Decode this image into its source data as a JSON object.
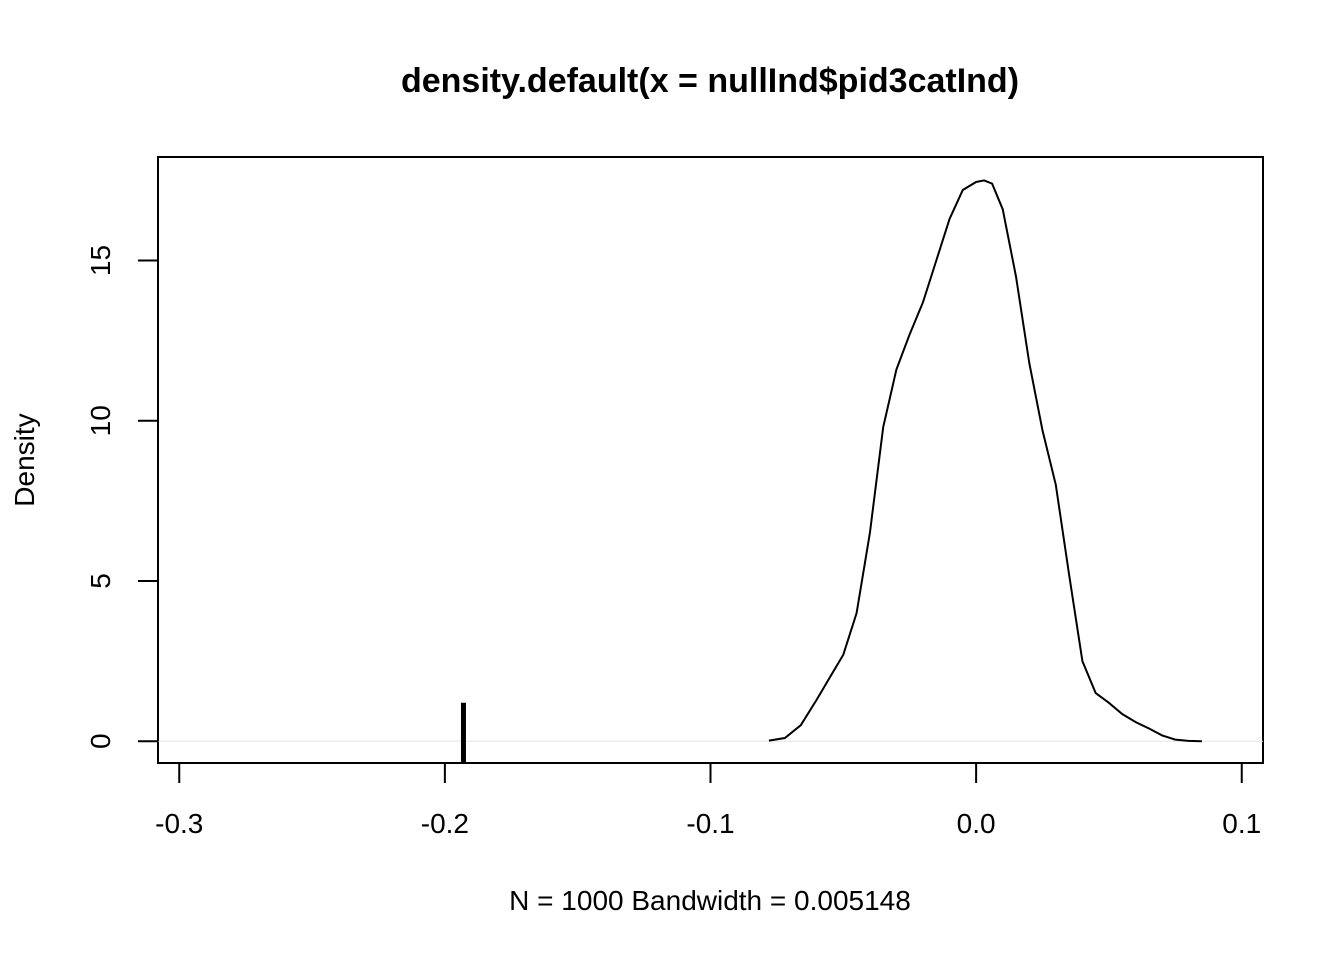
{
  "chart_data": {
    "type": "line",
    "title": "density.default(x = nullInd$pid3catInd)",
    "xlabel": "N = 1000   Bandwidth = 0.005148",
    "ylabel": "Density",
    "xlim": [
      -0.308,
      0.108
    ],
    "ylim": [
      -0.68,
      18.23
    ],
    "x_ticks": [
      -0.3,
      -0.2,
      -0.1,
      0.0,
      0.1
    ],
    "x_tick_labels": [
      "-0.3",
      "-0.2",
      "-0.1",
      "0.0",
      "0.1"
    ],
    "y_ticks": [
      0,
      5,
      10,
      15
    ],
    "y_tick_labels": [
      "0",
      "5",
      "10",
      "15"
    ],
    "zero_line": true,
    "grid": false,
    "series": [
      {
        "x": [
          -0.078,
          -0.072,
          -0.066,
          -0.06,
          -0.055,
          -0.05,
          -0.045,
          -0.04,
          -0.035,
          -0.03,
          -0.025,
          -0.02,
          -0.015,
          -0.01,
          -0.005,
          0.0,
          0.003,
          0.006,
          0.01,
          0.015,
          0.02,
          0.025,
          0.03,
          0.035,
          0.04,
          0.045,
          0.05,
          0.055,
          0.06,
          0.065,
          0.07,
          0.075,
          0.08,
          0.085
        ],
        "y": [
          0.02,
          0.1,
          0.5,
          1.3,
          2.0,
          2.7,
          4.0,
          6.5,
          9.8,
          11.6,
          12.7,
          13.7,
          15.0,
          16.3,
          17.2,
          17.45,
          17.5,
          17.4,
          16.6,
          14.5,
          11.8,
          9.7,
          8.0,
          5.2,
          2.5,
          1.5,
          1.2,
          0.85,
          0.6,
          0.4,
          0.18,
          0.05,
          0.01,
          0.0
        ]
      }
    ],
    "observed_marker": {
      "x": -0.193,
      "height": 1.2
    }
  }
}
